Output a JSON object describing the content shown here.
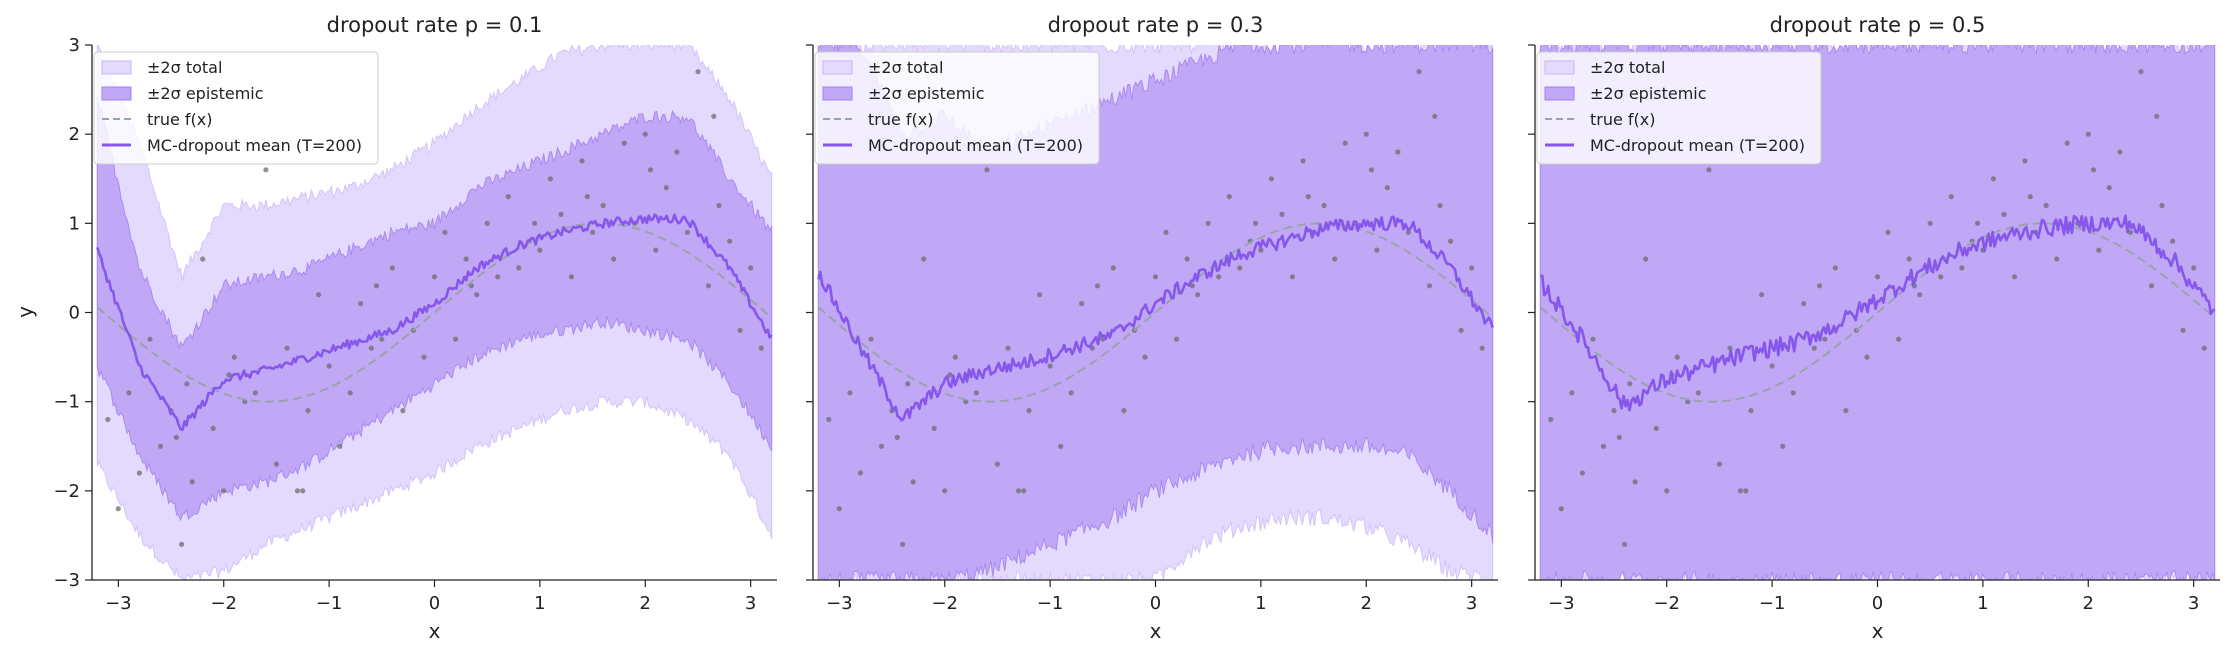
{
  "figure": {
    "ylabel_shared": "y"
  },
  "colors": {
    "total_band": "#e4dafd",
    "epistemic_band": "#c0a8f7",
    "mean_line": "#8757ec",
    "true_line": "#9aa3a6",
    "points": "#6e6e6e",
    "legend_frame": "#cccccc"
  },
  "legend": {
    "placement": "upper-left",
    "items": [
      {
        "label": "±2σ total",
        "kind": "patch-total"
      },
      {
        "label": "±2σ epistemic",
        "kind": "patch-epistemic"
      },
      {
        "label": "true f(x)",
        "kind": "line-dashed"
      },
      {
        "label": "MC-dropout mean (T=200)",
        "kind": "line-solid"
      }
    ]
  },
  "chart_data": [
    {
      "type": "area",
      "title": "dropout rate p = 0.1",
      "xlabel": "x",
      "ylabel": "y",
      "xlim": [
        -3.25,
        3.25
      ],
      "ylim": [
        -3,
        3
      ],
      "xticks": [
        -3,
        -2,
        -1,
        0,
        1,
        2,
        3
      ],
      "yticks": [
        -3,
        -2,
        -1,
        0,
        1,
        2,
        3
      ],
      "x": [
        -3.2,
        -2.8,
        -2.4,
        -2.0,
        -1.6,
        -1.2,
        -0.8,
        -0.4,
        0.0,
        0.4,
        0.8,
        1.2,
        1.6,
        2.0,
        2.4,
        2.8,
        3.2
      ],
      "series": [
        {
          "name": "MC-dropout mean (T=200)",
          "role": "mean",
          "values": [
            0.7,
            -0.6,
            -1.3,
            -0.75,
            -0.65,
            -0.5,
            -0.35,
            -0.2,
            0.1,
            0.5,
            0.75,
            0.9,
            1.0,
            1.05,
            1.05,
            0.5,
            -0.3
          ]
        },
        {
          "name": "±2σ epistemic",
          "role": "epistemic_band",
          "lower": [
            -0.6,
            -1.6,
            -2.3,
            -2.0,
            -1.9,
            -1.7,
            -1.4,
            -1.1,
            -0.8,
            -0.5,
            -0.3,
            -0.2,
            -0.1,
            -0.2,
            -0.3,
            -0.8,
            -1.5
          ],
          "upper": [
            2.4,
            0.5,
            -0.4,
            0.3,
            0.4,
            0.5,
            0.7,
            0.9,
            1.0,
            1.4,
            1.6,
            1.8,
            2.0,
            2.2,
            2.2,
            1.5,
            0.9
          ]
        },
        {
          "name": "±2σ total",
          "role": "total_band",
          "lower": [
            -1.7,
            -2.5,
            -3.0,
            -2.9,
            -2.6,
            -2.4,
            -2.2,
            -2.0,
            -1.8,
            -1.5,
            -1.3,
            -1.1,
            -1.0,
            -1.0,
            -1.2,
            -1.6,
            -2.5
          ],
          "upper": [
            3.0,
            1.9,
            0.4,
            1.2,
            1.2,
            1.3,
            1.4,
            1.6,
            1.9,
            2.3,
            2.6,
            2.9,
            3.0,
            3.0,
            3.0,
            2.4,
            1.5
          ]
        }
      ]
    },
    {
      "type": "area",
      "title": "dropout rate p = 0.3",
      "xlabel": "x",
      "ylabel": "",
      "xlim": [
        -3.25,
        3.25
      ],
      "ylim": [
        -3,
        3
      ],
      "xticks": [
        -3,
        -2,
        -1,
        0,
        1,
        2,
        3
      ],
      "yticks": [
        -3,
        -2,
        -1,
        0,
        1,
        2,
        3
      ],
      "x": [
        -3.2,
        -2.8,
        -2.4,
        -2.0,
        -1.6,
        -1.2,
        -0.8,
        -0.4,
        0.0,
        0.4,
        0.8,
        1.2,
        1.6,
        2.0,
        2.4,
        2.8,
        3.2
      ],
      "series": [
        {
          "name": "MC-dropout mean (T=200)",
          "role": "mean",
          "values": [
            0.45,
            -0.4,
            -1.2,
            -0.8,
            -0.65,
            -0.55,
            -0.4,
            -0.25,
            0.1,
            0.4,
            0.65,
            0.8,
            0.95,
            1.0,
            1.0,
            0.5,
            -0.2
          ]
        },
        {
          "name": "±2σ epistemic",
          "role": "epistemic_band",
          "lower": [
            -3.0,
            -3.0,
            -3.0,
            -3.0,
            -2.9,
            -2.7,
            -2.5,
            -2.3,
            -2.0,
            -1.8,
            -1.6,
            -1.5,
            -1.5,
            -1.5,
            -1.6,
            -2.0,
            -2.5
          ],
          "upper": [
            3.0,
            3.0,
            2.0,
            2.2,
            1.8,
            2.0,
            2.2,
            2.4,
            2.6,
            2.8,
            3.0,
            3.0,
            3.0,
            3.0,
            3.0,
            3.0,
            3.0
          ]
        },
        {
          "name": "±2σ total",
          "role": "total_band",
          "lower": [
            -3.0,
            -3.0,
            -3.0,
            -3.0,
            -3.0,
            -3.0,
            -3.0,
            -3.0,
            -3.0,
            -2.6,
            -2.4,
            -2.3,
            -2.3,
            -2.4,
            -2.6,
            -2.9,
            -3.0
          ],
          "upper": [
            3.0,
            3.0,
            3.0,
            3.0,
            3.0,
            3.0,
            3.0,
            3.0,
            3.0,
            3.0,
            3.0,
            3.0,
            3.0,
            3.0,
            3.0,
            3.0,
            3.0
          ]
        }
      ]
    },
    {
      "type": "area",
      "title": "dropout rate p = 0.5",
      "xlabel": "x",
      "ylabel": "",
      "xlim": [
        -3.25,
        3.25
      ],
      "ylim": [
        -3,
        3
      ],
      "xticks": [
        -3,
        -2,
        -1,
        0,
        1,
        2,
        3
      ],
      "yticks": [
        -3,
        -2,
        -1,
        0,
        1,
        2,
        3
      ],
      "x": [
        -3.2,
        -2.8,
        -2.4,
        -2.0,
        -1.6,
        -1.2,
        -0.8,
        -0.4,
        0.0,
        0.4,
        0.8,
        1.2,
        1.6,
        2.0,
        2.4,
        2.8,
        3.2
      ],
      "series": [
        {
          "name": "MC-dropout mean (T=200)",
          "role": "mean",
          "values": [
            0.35,
            -0.3,
            -1.05,
            -0.75,
            -0.6,
            -0.45,
            -0.35,
            -0.15,
            0.15,
            0.45,
            0.7,
            0.85,
            0.95,
            1.0,
            1.0,
            0.6,
            0.0
          ]
        },
        {
          "name": "±2σ epistemic",
          "role": "epistemic_band",
          "lower": [
            -3.0,
            -3.0,
            -3.0,
            -3.0,
            -3.0,
            -3.0,
            -3.0,
            -3.0,
            -3.0,
            -3.0,
            -3.0,
            -3.0,
            -3.0,
            -3.0,
            -3.0,
            -3.0,
            -3.0
          ],
          "upper": [
            3.0,
            3.0,
            3.0,
            3.0,
            3.0,
            3.0,
            3.0,
            3.0,
            3.0,
            3.0,
            3.0,
            3.0,
            3.0,
            3.0,
            3.0,
            3.0,
            3.0
          ]
        },
        {
          "name": "±2σ total",
          "role": "total_band",
          "lower": [
            -3.0,
            -3.0,
            -3.0,
            -3.0,
            -3.0,
            -3.0,
            -3.0,
            -3.0,
            -3.0,
            -3.0,
            -3.0,
            -3.0,
            -3.0,
            -3.0,
            -3.0,
            -3.0,
            -3.0
          ],
          "upper": [
            3.0,
            3.0,
            3.0,
            3.0,
            3.0,
            3.0,
            3.0,
            3.0,
            3.0,
            3.0,
            3.0,
            3.0,
            3.0,
            3.0,
            3.0,
            3.0,
            3.0
          ]
        }
      ]
    }
  ],
  "observations": {
    "note_series": "noisy training points, shared across panels",
    "x": [
      -3.1,
      -3.0,
      -2.9,
      -2.8,
      -2.7,
      -2.6,
      -2.5,
      -2.4,
      -2.35,
      -2.3,
      -2.2,
      -2.1,
      -2.0,
      -1.9,
      -1.8,
      -1.7,
      -1.6,
      -1.5,
      -1.4,
      -1.3,
      -1.2,
      -1.1,
      -1.0,
      -0.9,
      -0.8,
      -0.7,
      -0.6,
      -0.5,
      -0.4,
      -0.3,
      -0.2,
      -0.1,
      0.0,
      0.1,
      0.2,
      0.3,
      0.4,
      0.5,
      0.6,
      0.7,
      0.8,
      0.9,
      1.0,
      1.1,
      1.2,
      1.3,
      1.4,
      1.5,
      1.6,
      1.7,
      1.8,
      1.9,
      2.0,
      2.1,
      2.2,
      2.3,
      2.4,
      2.5,
      2.6,
      2.7,
      2.8,
      2.9,
      3.0,
      3.1,
      -2.45,
      -1.95,
      -1.25,
      -0.55,
      0.35,
      0.95,
      1.45,
      2.05,
      2.65
    ],
    "y": [
      -1.2,
      -2.2,
      -0.9,
      -1.8,
      -0.3,
      -1.5,
      -1.1,
      -2.6,
      -0.8,
      -1.9,
      0.6,
      -1.3,
      -2.0,
      -0.5,
      -1.0,
      -0.9,
      1.6,
      -1.7,
      -0.4,
      -2.0,
      -1.1,
      0.2,
      -0.6,
      -1.5,
      -0.9,
      0.1,
      -0.4,
      -0.3,
      0.5,
      -1.1,
      -0.2,
      -0.5,
      0.4,
      0.9,
      -0.3,
      0.6,
      0.2,
      1.0,
      0.4,
      1.3,
      0.5,
      0.8,
      0.7,
      1.5,
      1.1,
      0.4,
      1.7,
      0.9,
      1.2,
      0.6,
      1.9,
      1.0,
      2.0,
      0.7,
      1.4,
      1.8,
      0.9,
      2.7,
      0.3,
      1.2,
      0.8,
      -0.2,
      0.5,
      -0.4,
      -1.4,
      -0.7,
      -2.0,
      0.3,
      0.3,
      1.0,
      1.3,
      1.6,
      2.2
    ]
  }
}
